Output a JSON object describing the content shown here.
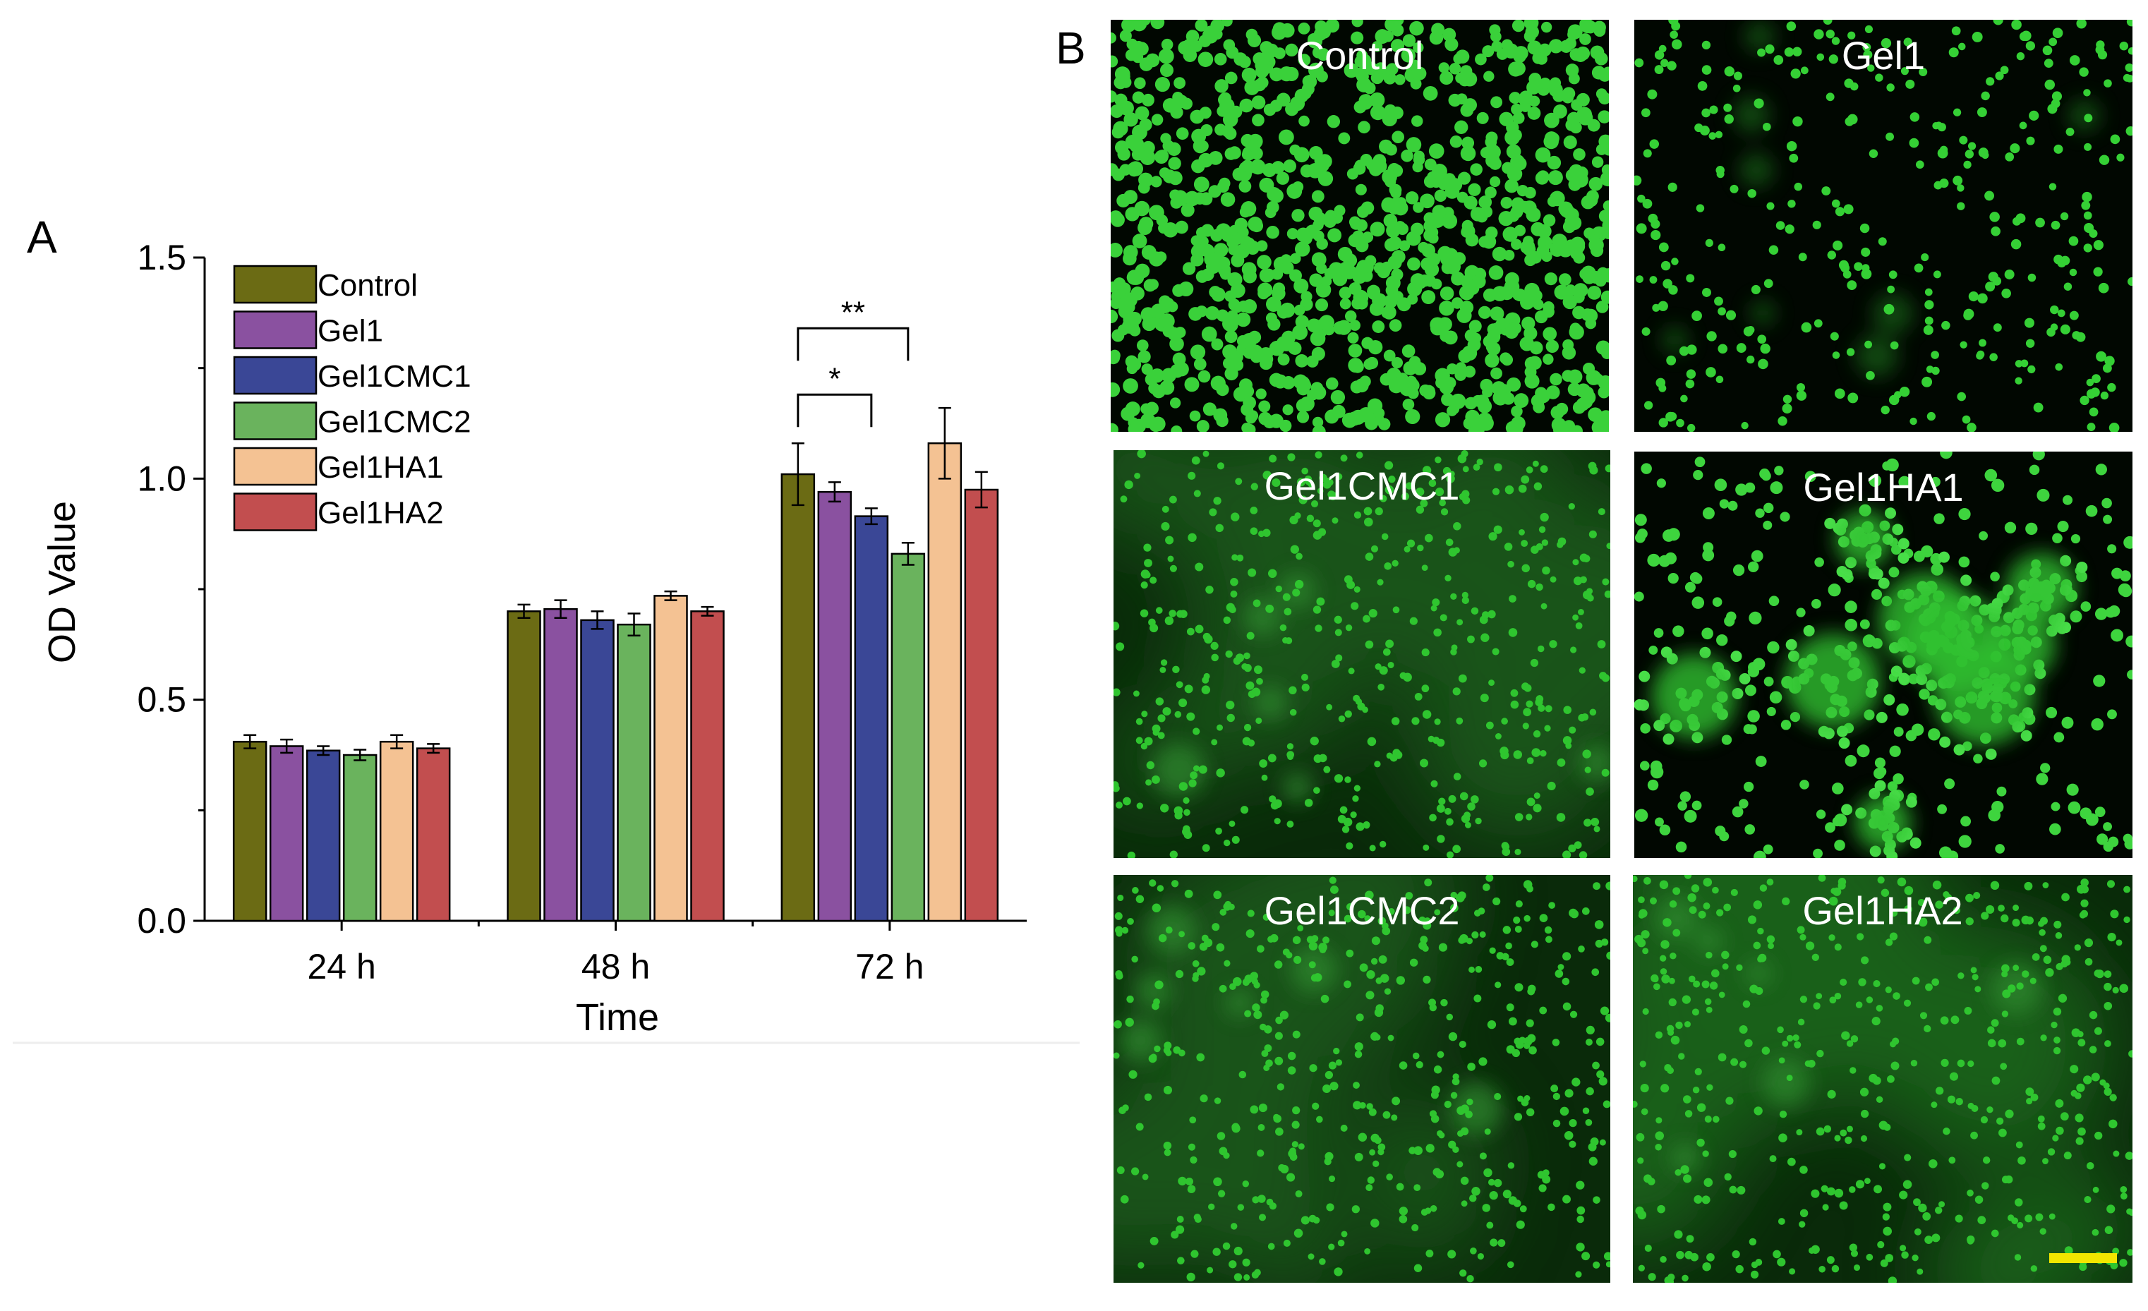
{
  "panel_a_letter": "A",
  "panel_b_letter": "B",
  "chart_data": {
    "type": "bar",
    "categories": [
      "24 h",
      "48 h",
      "72 h"
    ],
    "xlabel": "Time",
    "ylabel": "OD Value",
    "ylim": [
      0,
      1.5
    ],
    "yticks": [
      "0.0",
      "0.5",
      "1.0",
      "1.5"
    ],
    "legend_position": "top-left",
    "series": [
      {
        "name": "Control",
        "color": "#6b6b14",
        "values": [
          0.405,
          0.7,
          1.01
        ],
        "errors": [
          0.015,
          0.015,
          0.07
        ]
      },
      {
        "name": "Gel1",
        "color": "#8a51a0",
        "values": [
          0.395,
          0.705,
          0.97
        ],
        "errors": [
          0.015,
          0.02,
          0.022
        ]
      },
      {
        "name": "Gel1CMC1",
        "color": "#3a4796",
        "values": [
          0.385,
          0.68,
          0.915
        ],
        "errors": [
          0.01,
          0.02,
          0.018
        ]
      },
      {
        "name": "Gel1CMC2",
        "color": "#6ab35d",
        "values": [
          0.375,
          0.67,
          0.83
        ],
        "errors": [
          0.012,
          0.025,
          0.025
        ]
      },
      {
        "name": "Gel1HA1",
        "color": "#f4c293",
        "values": [
          0.405,
          0.735,
          1.08
        ],
        "errors": [
          0.015,
          0.01,
          0.08
        ]
      },
      {
        "name": "Gel1HA2",
        "color": "#c24e4f",
        "values": [
          0.39,
          0.7,
          0.975
        ],
        "errors": [
          0.01,
          0.01,
          0.04
        ]
      }
    ],
    "significance": [
      {
        "group": "72 h",
        "from": "Control",
        "to": "Gel1CMC1",
        "label": "*",
        "y": 1.19
      },
      {
        "group": "72 h",
        "from": "Control",
        "to": "Gel1CMC2",
        "label": "**",
        "y": 1.34
      }
    ]
  },
  "micrographs": [
    {
      "label": "Control",
      "style": "dense",
      "seed": 11
    },
    {
      "label": "Gel1",
      "style": "sparse",
      "seed": 23
    },
    {
      "label": "Gel1CMC1",
      "style": "hazy",
      "seed": 37
    },
    {
      "label": "Gel1HA1",
      "style": "clusters",
      "seed": 41
    },
    {
      "label": "Gel1CMC2",
      "style": "hazy",
      "seed": 53
    },
    {
      "label": "Gel1HA2",
      "style": "hazy2",
      "seed": 67
    }
  ],
  "scale_bar_color": "#f2e600"
}
